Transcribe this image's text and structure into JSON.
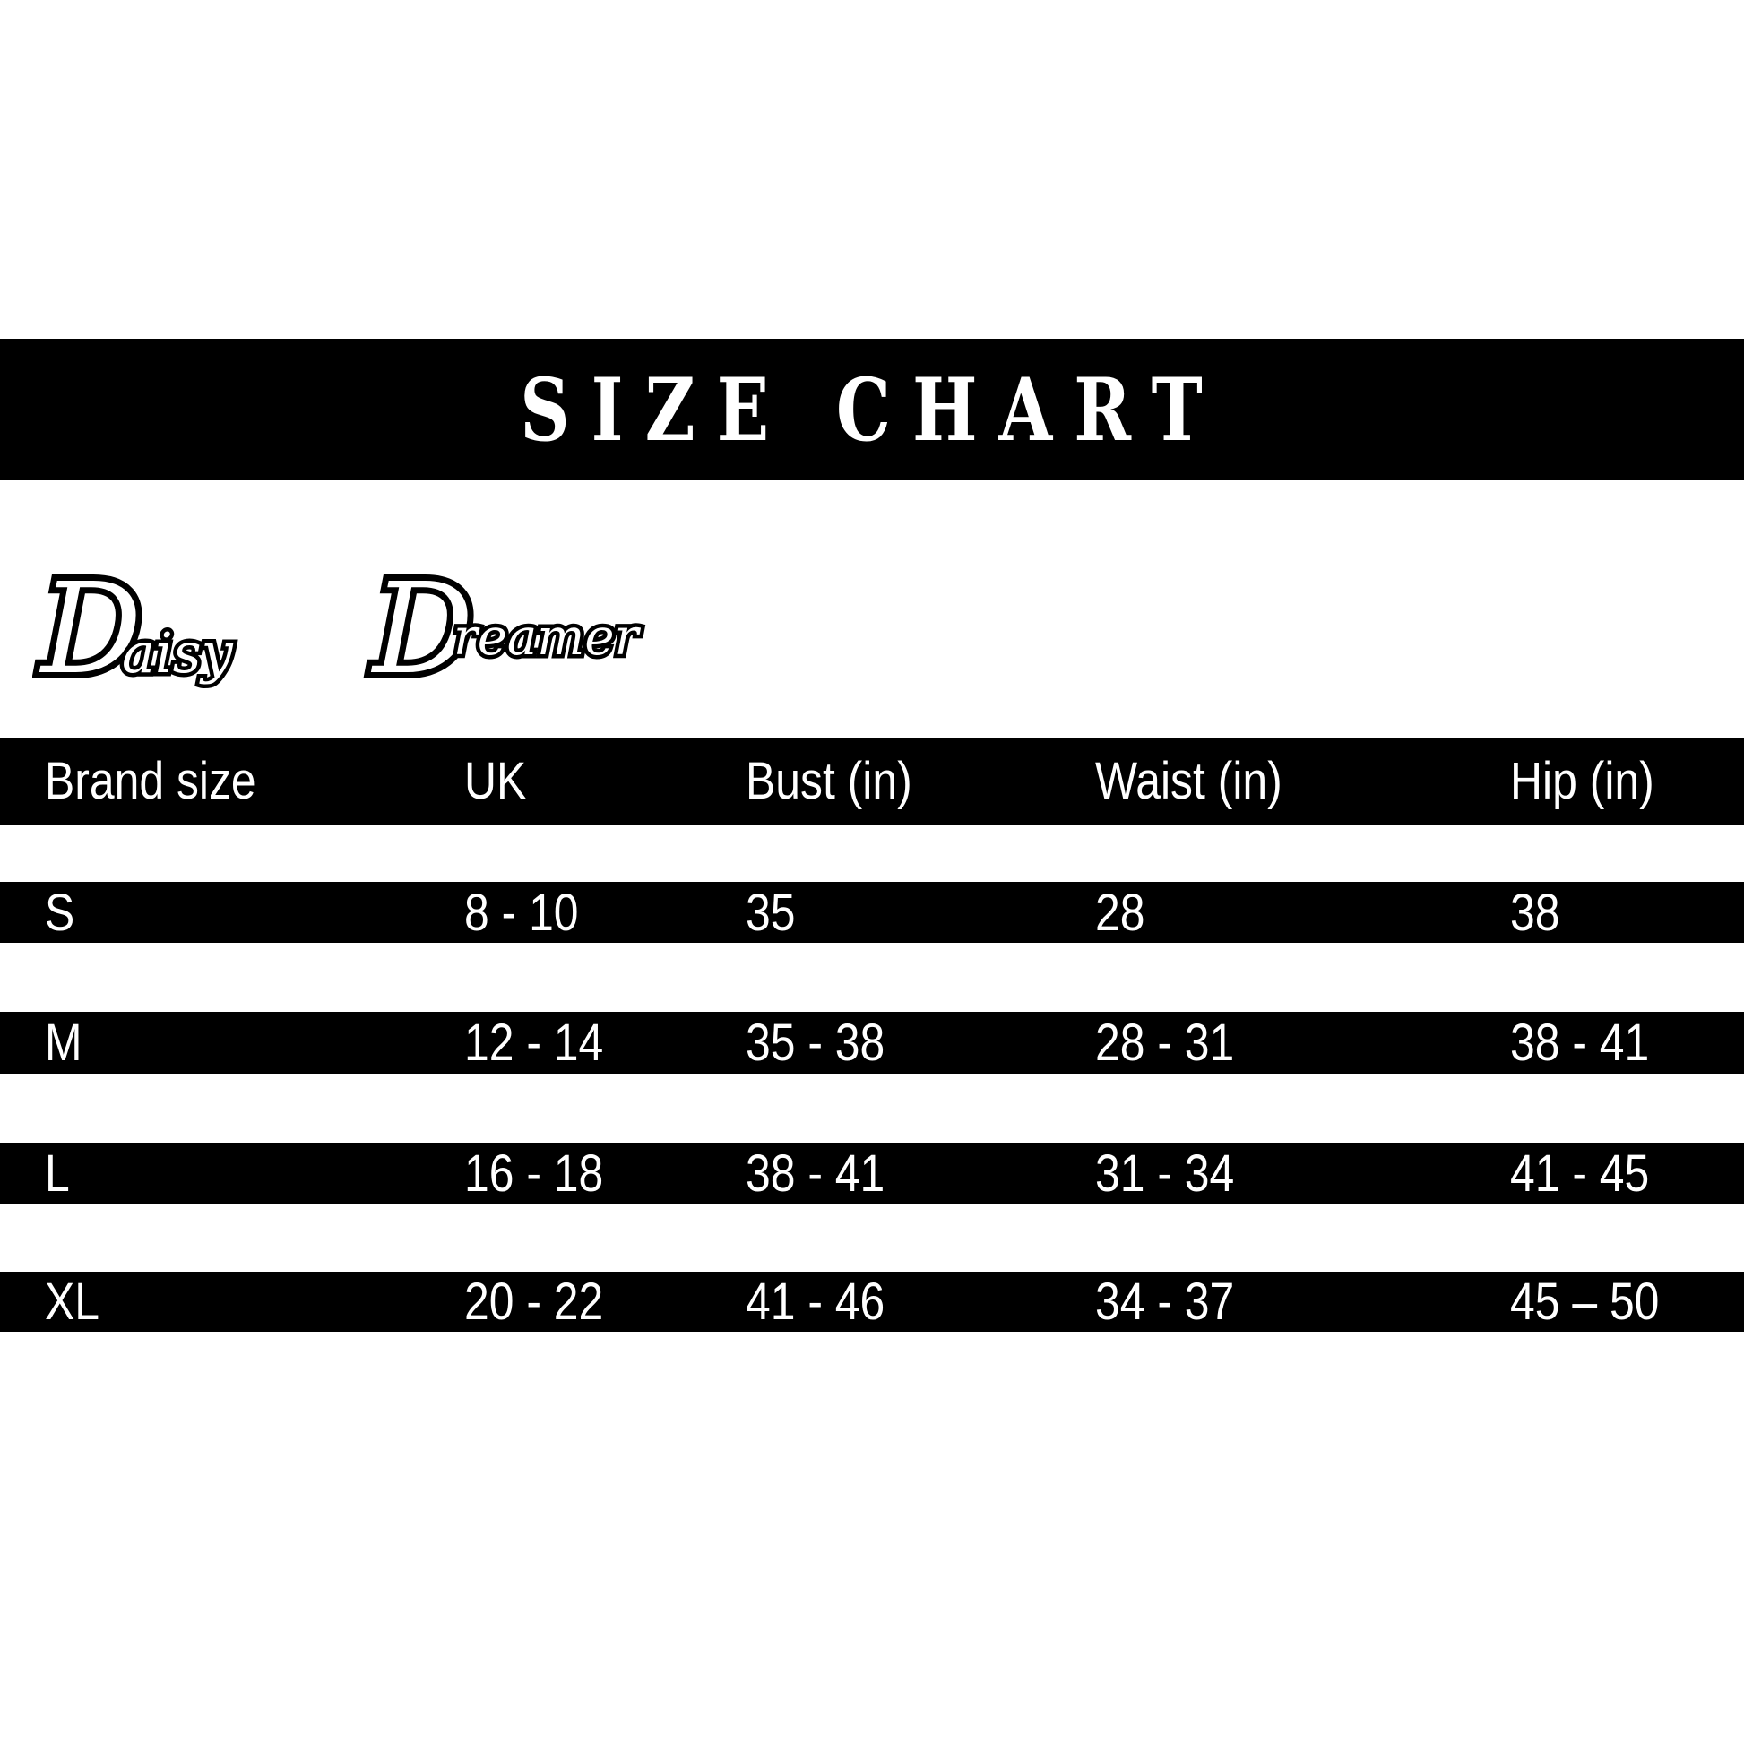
{
  "title": "SIZE CHART",
  "logo_text": "Daisy Dreamer",
  "table": {
    "headers": [
      "Brand size",
      "UK",
      "Bust (in)",
      "Waist (in)",
      "Hip (in)"
    ],
    "rows": [
      [
        "S",
        "8 - 10",
        "35",
        "28",
        "38"
      ],
      [
        "M",
        "12 - 14",
        "35 - 38",
        "28 - 31",
        "38 - 41"
      ],
      [
        "L",
        "16 - 18",
        "38 - 41",
        "31 - 34",
        "41 - 45"
      ],
      [
        "XL",
        "20 - 22",
        "41 - 46",
        "34 - 37",
        "45 – 50"
      ]
    ]
  }
}
